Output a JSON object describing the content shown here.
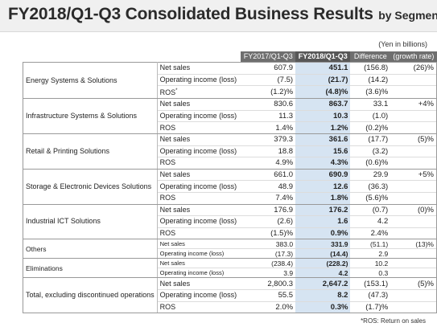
{
  "title": {
    "main": "FY2018/Q1-Q3 Consolidated Business Results",
    "sub": "by Segment"
  },
  "unit_note": "(Yen in billions)",
  "table": {
    "headers": {
      "prev": "FY2017/Q1-Q3",
      "curr": "FY2018/Q1-Q3",
      "diff": "Difference",
      "growth": "(growth rate)"
    },
    "segments": [
      {
        "name": "Energy Systems & Solutions",
        "rows": [
          {
            "item": "Net sales",
            "prev": "607.9",
            "curr": "451.1",
            "diff": "(156.8)",
            "growth": "(26)%"
          },
          {
            "item": "Operating income (loss)",
            "prev": "(7.5)",
            "curr": "(21.7)",
            "diff": "(14.2)",
            "growth": ""
          },
          {
            "item": "ROS",
            "prev": "(1.2)%",
            "curr": "(4.8)%",
            "diff": "(3.6)%",
            "growth": ""
          }
        ]
      },
      {
        "name": "Infrastructure Systems & Solutions",
        "rows": [
          {
            "item": "Net sales",
            "prev": "830.6",
            "curr": "863.7",
            "diff": "33.1",
            "growth": "+4%"
          },
          {
            "item": "Operating income (loss)",
            "prev": "11.3",
            "curr": "10.3",
            "diff": "(1.0)",
            "growth": ""
          },
          {
            "item": "ROS",
            "prev": "1.4%",
            "curr": "1.2%",
            "diff": "(0.2)%",
            "growth": ""
          }
        ]
      },
      {
        "name": "Retail & Printing Solutions",
        "rows": [
          {
            "item": "Net sales",
            "prev": "379.3",
            "curr": "361.6",
            "diff": "(17.7)",
            "growth": "(5)%"
          },
          {
            "item": "Operating income (loss)",
            "prev": "18.8",
            "curr": "15.6",
            "diff": "(3.2)",
            "growth": ""
          },
          {
            "item": "ROS",
            "prev": "4.9%",
            "curr": "4.3%",
            "diff": "(0.6)%",
            "growth": ""
          }
        ]
      },
      {
        "name": "Storage & Electronic Devices Solutions",
        "rows": [
          {
            "item": "Net sales",
            "prev": "661.0",
            "curr": "690.9",
            "diff": "29.9",
            "growth": "+5%"
          },
          {
            "item": "Operating income (loss)",
            "prev": "48.9",
            "curr": "12.6",
            "diff": "(36.3)",
            "growth": ""
          },
          {
            "item": "ROS",
            "prev": "7.4%",
            "curr": "1.8%",
            "diff": "(5.6)%",
            "growth": ""
          }
        ]
      },
      {
        "name": "Industrial ICT Solutions",
        "rows": [
          {
            "item": "Net sales",
            "prev": "176.9",
            "curr": "176.2",
            "diff": "(0.7)",
            "growth": "(0)%"
          },
          {
            "item": "Operating income (loss)",
            "prev": "(2.6)",
            "curr": "1.6",
            "diff": "4.2",
            "growth": ""
          },
          {
            "item": "ROS",
            "prev": "(1.5)%",
            "curr": "0.9%",
            "diff": "2.4%",
            "growth": ""
          }
        ]
      },
      {
        "name": "Others",
        "small": true,
        "rows": [
          {
            "item": "Net sales",
            "prev": "383.0",
            "curr": "331.9",
            "diff": "(51.1)",
            "growth": "(13)%"
          },
          {
            "item": "Operating income (loss)",
            "prev": "(17.3)",
            "curr": "(14.4)",
            "diff": "2.9",
            "growth": ""
          }
        ]
      },
      {
        "name": "Eliminations",
        "small": true,
        "rows": [
          {
            "item": "Net sales",
            "prev": "(238.4)",
            "curr": "(228.2)",
            "diff": "10.2",
            "growth": ""
          },
          {
            "item": "Operating income (loss)",
            "prev": "3.9",
            "curr": "4.2",
            "diff": "0.3",
            "growth": ""
          }
        ]
      },
      {
        "name": "Total, excluding discontinued operations",
        "rows": [
          {
            "item": "Net sales",
            "prev": "2,800.3",
            "curr": "2,647.2",
            "diff": "(153.1)",
            "growth": "(5)%"
          },
          {
            "item": "Operating income (loss)",
            "prev": "55.5",
            "curr": "8.2",
            "diff": "(47.3)",
            "growth": ""
          },
          {
            "item": "ROS",
            "prev": "2.0%",
            "curr": "0.3%",
            "diff": "(1.7)%",
            "growth": ""
          }
        ]
      }
    ]
  },
  "ros_marker": "*",
  "footnote": "*ROS: Return on sales"
}
